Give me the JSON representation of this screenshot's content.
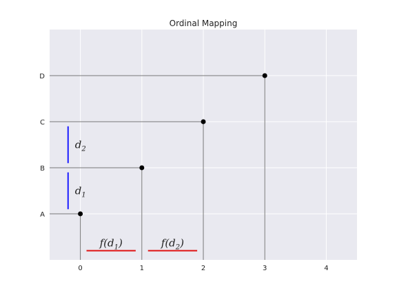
{
  "chart_data": {
    "type": "scatter",
    "title": "Ordinal Mapping",
    "xlabel": "",
    "ylabel": "",
    "xlim": [
      -0.5,
      4.5
    ],
    "ylim": [
      -1,
      4
    ],
    "x_ticks": [
      0,
      1,
      2,
      3,
      4
    ],
    "x_tick_labels": [
      "0",
      "1",
      "2",
      "3",
      "4"
    ],
    "y_ticks": [
      0,
      1,
      2,
      3
    ],
    "y_tick_labels": [
      "A",
      "B",
      "C",
      "D"
    ],
    "grid": true,
    "points": [
      {
        "x": 0,
        "y": 0
      },
      {
        "x": 1,
        "y": 1
      },
      {
        "x": 2,
        "y": 2
      },
      {
        "x": 3,
        "y": 3
      }
    ],
    "colors": {
      "background": "#e9e9f0",
      "grid": "#ffffff",
      "guide_lines": "#777777",
      "points": "#000000",
      "distance_markers": "#1a1aff",
      "mapped_markers": "#e01010"
    },
    "annotations": {
      "distances": [
        {
          "x": -0.2,
          "y_from": 0.1,
          "y_to": 0.9,
          "label": "d",
          "subscript": "1"
        },
        {
          "x": -0.2,
          "y_from": 1.1,
          "y_to": 1.9,
          "label": "d",
          "subscript": "2"
        }
      ],
      "mapped": [
        {
          "y": -0.8,
          "x_from": 0.1,
          "x_to": 0.9,
          "label_prefix": "f(d",
          "subscript": "1",
          "label_suffix": ")"
        },
        {
          "y": -0.8,
          "x_from": 1.1,
          "x_to": 1.9,
          "label_prefix": "f(d",
          "subscript": "2",
          "label_suffix": ")"
        }
      ]
    }
  }
}
